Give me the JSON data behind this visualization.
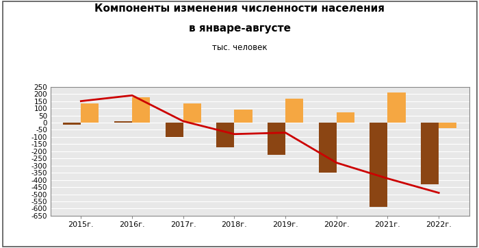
{
  "title_line1": "Компоненты изменения численности населения",
  "title_line2": "в январе-августе",
  "subtitle": "тыс. человек",
  "years": [
    "2015г.",
    "2016г.",
    "2017г.",
    "2018г.",
    "2019г.",
    "2020г.",
    "2021г.",
    "2022г."
  ],
  "natural_growth": [
    -15,
    10,
    -100,
    -170,
    -225,
    -350,
    -590,
    -430
  ],
  "migration_growth": [
    135,
    175,
    135,
    90,
    165,
    72,
    210,
    -40
  ],
  "total_growth": [
    150,
    190,
    10,
    -80,
    -70,
    -280,
    -390,
    -490
  ],
  "brown_color": "#8B4513",
  "orange_color": "#F5A742",
  "red_color": "#CC0000",
  "plot_bg_color": "#E8E8E8",
  "fig_bg_color": "#FFFFFF",
  "border_color": "#888888",
  "grid_color": "#FFFFFF",
  "ylim": [
    -650,
    250
  ],
  "yticks": [
    250,
    200,
    150,
    100,
    50,
    0,
    -50,
    -100,
    -150,
    -200,
    -250,
    -300,
    -350,
    -400,
    -450,
    -500,
    -550,
    -600,
    -650
  ],
  "bar_width": 0.35
}
